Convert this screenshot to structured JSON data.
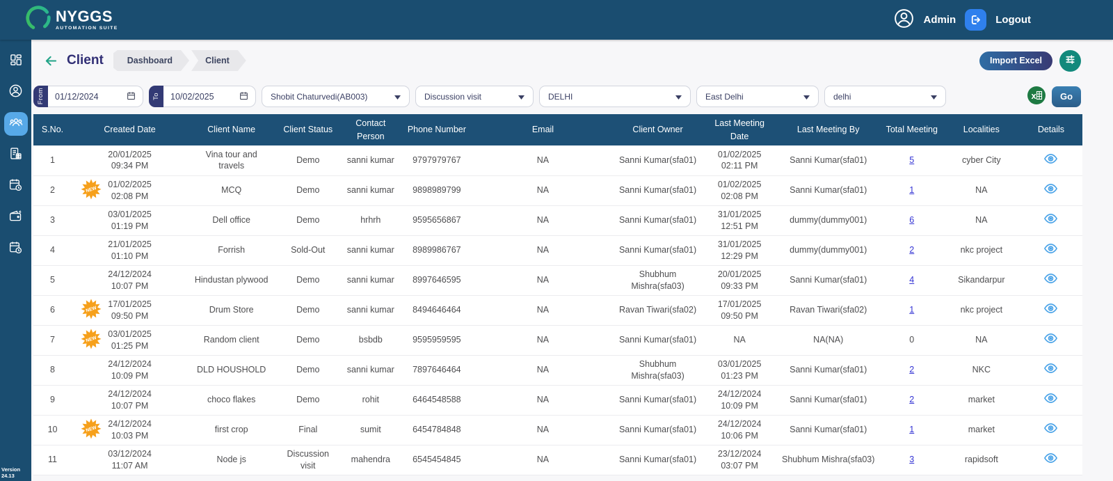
{
  "colors": {
    "header_bg": "#1a4d70",
    "table_header_bg": "#1d5076",
    "active_item_bg": "#57a9e8",
    "title_color": "#312f75",
    "back_arrow": "#21a387",
    "link_blue": "#3434d4",
    "badge_orange": "#f6a01b",
    "eye_blue": "#4aa3e8",
    "excel_green": "#1e7a43",
    "go_from": "#3a7fb2",
    "go_to": "#2b5d89",
    "import_from": "#2f6da4",
    "import_to": "#383a74",
    "filter_btn": "#12897c",
    "logout_blue": "#2f80ed",
    "tab_indigo": "#333a75"
  },
  "brand": {
    "name": "NYGGS",
    "tagline": "AUTOMATION SUITE"
  },
  "topbar": {
    "user_label": "Admin",
    "logout_label": "Logout"
  },
  "sidebar": {
    "version": "Version 24.13",
    "active_index": 2,
    "items": [
      "dashboard",
      "profile",
      "clients",
      "billing",
      "meetings",
      "expenses",
      "schedule"
    ]
  },
  "page": {
    "title": "Client",
    "breadcrumbs": [
      "Dashboard",
      "Client"
    ],
    "import_excel_label": "Import Excel"
  },
  "filters": {
    "from": {
      "label": "From",
      "value": "01/12/2024"
    },
    "to": {
      "label": "To",
      "value": "10/02/2025"
    },
    "dropdowns": [
      {
        "name": "employee",
        "value": "Shobit Chaturvedi(AB003)"
      },
      {
        "name": "meeting-type",
        "value": "Discussion visit"
      },
      {
        "name": "state",
        "value": "DELHI"
      },
      {
        "name": "district",
        "value": "East Delhi"
      },
      {
        "name": "city",
        "value": "delhi"
      }
    ],
    "go_label": "Go"
  },
  "table": {
    "columns": [
      "S.No.",
      "Created Date",
      "Client Name",
      "Client Status",
      "Contact Person",
      "Phone Number",
      "Email",
      "Client Owner",
      "Last Meeting Date",
      "Last Meeting By",
      "Total Meeting",
      "Localities",
      "Details"
    ],
    "rows": [
      {
        "sno": "1",
        "new": false,
        "created_date": "20/01/2025",
        "created_time": "09:34 PM",
        "client_name": "Vina tour and travels",
        "status": "Demo",
        "contact": "sanni kumar",
        "phone": "9797979767",
        "email": "NA",
        "owner": "Sanni Kumar(sfa01)",
        "last_meeting_date": "01/02/2025",
        "last_meeting_time": "02:11 PM",
        "last_meeting_by": "Sanni Kumar(sfa01)",
        "total": "5",
        "locality": "cyber City"
      },
      {
        "sno": "2",
        "new": true,
        "created_date": "01/02/2025",
        "created_time": "02:08 PM",
        "client_name": "MCQ",
        "status": "Demo",
        "contact": "sanni kumar",
        "phone": "9898989799",
        "email": "NA",
        "owner": "Sanni Kumar(sfa01)",
        "last_meeting_date": "01/02/2025",
        "last_meeting_time": "02:08 PM",
        "last_meeting_by": "Sanni Kumar(sfa01)",
        "total": "1",
        "locality": "NA"
      },
      {
        "sno": "3",
        "new": false,
        "created_date": "03/01/2025",
        "created_time": "01:19 PM",
        "client_name": "Dell office",
        "status": "Demo",
        "contact": "hrhrh",
        "phone": "9595656867",
        "email": "NA",
        "owner": "Sanni Kumar(sfa01)",
        "last_meeting_date": "31/01/2025",
        "last_meeting_time": "12:51 PM",
        "last_meeting_by": "dummy(dummy001)",
        "total": "6",
        "locality": "NA"
      },
      {
        "sno": "4",
        "new": false,
        "created_date": "21/01/2025",
        "created_time": "01:10 PM",
        "client_name": "Forrish",
        "status": "Sold-Out",
        "contact": "sanni kumar",
        "phone": "8989986767",
        "email": "NA",
        "owner": "Sanni Kumar(sfa01)",
        "last_meeting_date": "31/01/2025",
        "last_meeting_time": "12:29 PM",
        "last_meeting_by": "dummy(dummy001)",
        "total": "2",
        "locality": "nkc project"
      },
      {
        "sno": "5",
        "new": false,
        "created_date": "24/12/2024",
        "created_time": "10:07 PM",
        "client_name": "Hindustan plywood",
        "status": "Demo",
        "contact": "sanni kumar",
        "phone": "8997646595",
        "email": "NA",
        "owner": "Shubhum Mishra(sfa03)",
        "last_meeting_date": "20/01/2025",
        "last_meeting_time": "09:33 PM",
        "last_meeting_by": "Sanni Kumar(sfa01)",
        "total": "4",
        "locality": "Sikandarpur"
      },
      {
        "sno": "6",
        "new": true,
        "created_date": "17/01/2025",
        "created_time": "09:50 PM",
        "client_name": "Drum Store",
        "status": "Demo",
        "contact": "sanni kumar",
        "phone": "8494646464",
        "email": "NA",
        "owner": "Ravan Tiwari(sfa02)",
        "last_meeting_date": "17/01/2025",
        "last_meeting_time": "09:50 PM",
        "last_meeting_by": "Ravan Tiwari(sfa02)",
        "total": "1",
        "locality": "nkc project"
      },
      {
        "sno": "7",
        "new": true,
        "created_date": "03/01/2025",
        "created_time": "01:25 PM",
        "client_name": "Random client",
        "status": "Demo",
        "contact": "bsbdb",
        "phone": "9595959595",
        "email": "NA",
        "owner": "Sanni Kumar(sfa01)",
        "last_meeting_date": "NA",
        "last_meeting_time": "",
        "last_meeting_by": "NA(NA)",
        "total": "0",
        "locality": "NA"
      },
      {
        "sno": "8",
        "new": false,
        "created_date": "24/12/2024",
        "created_time": "10:09 PM",
        "client_name": "DLD HOUSHOLD",
        "status": "Demo",
        "contact": "sanni kumar",
        "phone": "7897646464",
        "email": "NA",
        "owner": "Shubhum Mishra(sfa03)",
        "last_meeting_date": "03/01/2025",
        "last_meeting_time": "01:23 PM",
        "last_meeting_by": "Sanni Kumar(sfa01)",
        "total": "2",
        "locality": "NKC"
      },
      {
        "sno": "9",
        "new": false,
        "created_date": "24/12/2024",
        "created_time": "10:07 PM",
        "client_name": "choco flakes",
        "status": "Demo",
        "contact": "rohit",
        "phone": "6464548588",
        "email": "NA",
        "owner": "Sanni Kumar(sfa01)",
        "last_meeting_date": "24/12/2024",
        "last_meeting_time": "10:09 PM",
        "last_meeting_by": "Sanni Kumar(sfa01)",
        "total": "2",
        "locality": "market"
      },
      {
        "sno": "10",
        "new": true,
        "created_date": "24/12/2024",
        "created_time": "10:03 PM",
        "client_name": "first crop",
        "status": "Final",
        "contact": "sumit",
        "phone": "6454784848",
        "email": "NA",
        "owner": "Sanni Kumar(sfa01)",
        "last_meeting_date": "24/12/2024",
        "last_meeting_time": "10:06 PM",
        "last_meeting_by": "Sanni Kumar(sfa01)",
        "total": "1",
        "locality": "market"
      },
      {
        "sno": "11",
        "new": false,
        "created_date": "03/12/2024",
        "created_time": "11:07 AM",
        "client_name": "Node js",
        "status": "Discussion visit",
        "contact": "mahendra",
        "phone": "6545454845",
        "email": "NA",
        "owner": "Sanni Kumar(sfa01)",
        "last_meeting_date": "23/12/2024",
        "last_meeting_time": "03:07 PM",
        "last_meeting_by": "Shubhum Mishra(sfa03)",
        "total": "3",
        "locality": "rapidsoft"
      }
    ]
  }
}
